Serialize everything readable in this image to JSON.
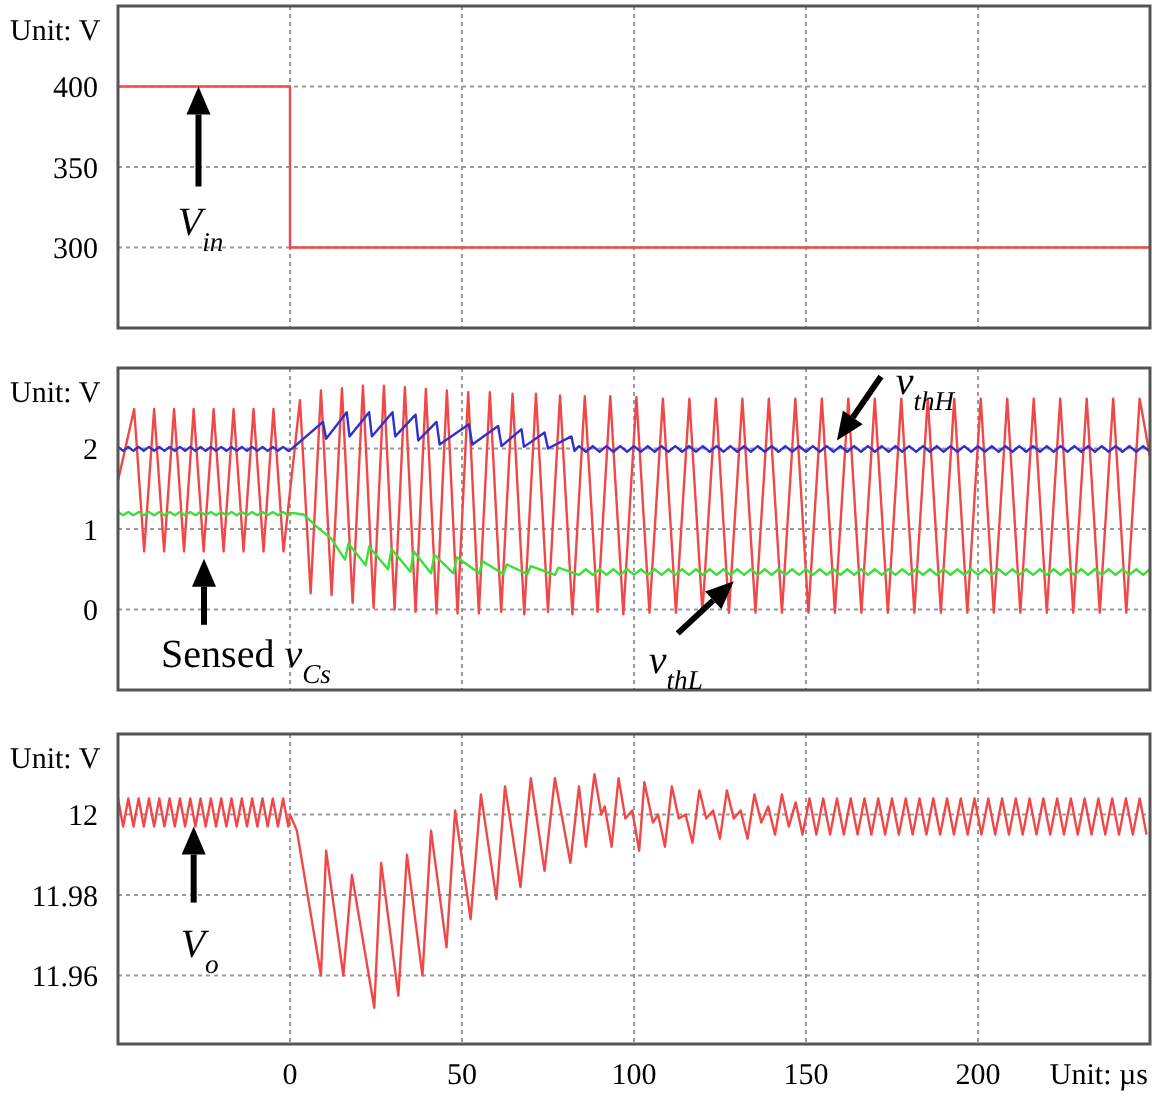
{
  "chart_data": [
    {
      "type": "step",
      "xlim": [
        -50,
        250
      ],
      "xticks": [
        0,
        50,
        100,
        150,
        200
      ],
      "ylim": [
        250,
        450
      ],
      "yticks": [
        300,
        350,
        400
      ],
      "grid": true,
      "tick_labels": "y",
      "series": [
        {
          "color": "#f04848",
          "x": [
            -50,
            0,
            250
          ],
          "values": [
            400,
            300,
            300
          ]
        }
      ],
      "annotations": [
        "Unit: V",
        {
          "text": "V$_{in}$",
          "x": -26.6,
          "y": 400
        }
      ]
    },
    {
      "type": "line",
      "xlim": [
        -50,
        250
      ],
      "xticks": [
        0,
        50,
        100,
        150,
        200
      ],
      "ylim": [
        -1,
        3
      ],
      "yticks": [
        0,
        1,
        2
      ],
      "grid": true,
      "tick_labels": "y",
      "series": [
        {
          "color": "#f04848",
          "x": [
            -50,
            -45.3,
            -42.4,
            -39.5,
            -36.6,
            -33.7,
            -30.8,
            -28.0,
            -25.1,
            -22.2,
            -19.3,
            -16.4,
            -13.5,
            -10.6,
            -7.7,
            -4.8,
            -1.9,
            2.9,
            6.0,
            9.0,
            12.1,
            15.1,
            18.2,
            21.2,
            24.3,
            27.3,
            30.4,
            33.4,
            36.5,
            39.5,
            42.6,
            45.6,
            48.7,
            51.8,
            54.9,
            58.1,
            61.4,
            64.7,
            68.1,
            71.5,
            75.0,
            78.5,
            82.1,
            85.7,
            89.4,
            93.1,
            96.9,
            100.7,
            104.5,
            108.4,
            112.2,
            116.1,
            119.9,
            123.8,
            127.6,
            131.5,
            135.3,
            139.2,
            143.0,
            146.9,
            150.7,
            154.6,
            158.4,
            162.3,
            166.1,
            170.0,
            173.8,
            177.7,
            181.5,
            185.4,
            189.2,
            193.1,
            196.9,
            200.8,
            204.6,
            208.5,
            212.3,
            216.2,
            220.0,
            223.9,
            227.7,
            231.6,
            235.4,
            239.3,
            243.1,
            247.0,
            250
          ],
          "values": [
            1.6,
            2.49,
            0.72,
            2.49,
            0.72,
            2.49,
            0.72,
            2.49,
            0.72,
            2.49,
            0.72,
            2.49,
            0.72,
            2.49,
            0.72,
            2.49,
            0.72,
            2.6,
            0.2,
            2.72,
            0.18,
            2.75,
            0.08,
            2.78,
            0.02,
            2.78,
            0.0,
            2.76,
            -0.03,
            2.74,
            -0.05,
            2.72,
            -0.05,
            2.7,
            -0.05,
            2.7,
            -0.03,
            2.68,
            -0.06,
            2.68,
            -0.03,
            2.66,
            -0.06,
            2.65,
            -0.03,
            2.65,
            -0.06,
            2.64,
            -0.04,
            2.62,
            -0.04,
            2.62,
            -0.04,
            2.62,
            -0.04,
            2.62,
            -0.04,
            2.62,
            -0.04,
            2.62,
            -0.04,
            2.62,
            -0.04,
            2.62,
            -0.04,
            2.62,
            -0.04,
            2.62,
            -0.04,
            2.62,
            -0.04,
            2.62,
            -0.04,
            2.62,
            -0.04,
            2.62,
            -0.04,
            2.62,
            -0.04,
            2.62,
            -0.04,
            2.62,
            -0.04,
            2.62,
            -0.04,
            2.62,
            1.9
          ]
        },
        {
          "color": "#3030d0",
          "x": [
            -50,
            -48.5,
            -47,
            -45.5,
            -44,
            -42.5,
            -41,
            -39.5,
            -38,
            -36.5,
            -35,
            -33.5,
            -32,
            -30.5,
            -29,
            -27.5,
            -26,
            -24.5,
            -23,
            -21.5,
            -20,
            -18.5,
            -17,
            -15.5,
            -14,
            -12.5,
            -11,
            -9.5,
            -8,
            -6.5,
            -5,
            -3.5,
            -2,
            -0.5,
            0.6,
            9.6,
            10.5,
            16.5,
            17.3,
            23,
            23.8,
            29.8,
            30.6,
            36.5,
            37.3,
            42.6,
            43.5,
            52,
            53,
            60.5,
            61.5,
            67.3,
            68,
            74,
            75,
            81.8,
            82.7,
            84,
            86,
            88,
            90,
            92,
            94,
            96,
            98,
            100,
            102,
            104,
            106,
            108,
            110,
            112,
            114,
            116,
            118,
            120,
            122,
            124,
            126,
            128,
            130,
            132,
            134,
            136,
            138,
            140,
            142,
            144,
            146,
            148,
            150,
            152,
            154,
            156,
            158,
            160,
            162,
            164,
            166,
            168,
            170,
            172,
            174,
            176,
            178,
            180,
            182,
            184,
            186,
            188,
            190,
            192,
            194,
            196,
            198,
            200,
            202,
            204,
            206,
            208,
            210,
            212,
            214,
            216,
            218,
            220,
            222,
            224,
            226,
            228,
            230,
            232,
            234,
            236,
            238,
            240,
            242,
            244,
            246,
            248,
            250
          ],
          "values": [
            2.02,
            1.97,
            2.02,
            1.97,
            2.02,
            1.97,
            2.02,
            1.97,
            2.02,
            1.97,
            2.02,
            1.97,
            2.02,
            1.97,
            2.02,
            1.97,
            2.02,
            1.97,
            2.02,
            1.97,
            2.02,
            1.97,
            2.02,
            1.97,
            2.02,
            1.97,
            2.02,
            1.97,
            2.02,
            1.97,
            2.02,
            1.97,
            2.02,
            1.97,
            2.0,
            2.33,
            2.12,
            2.45,
            2.15,
            2.45,
            2.15,
            2.45,
            2.15,
            2.42,
            2.1,
            2.33,
            2.05,
            2.3,
            2.05,
            2.28,
            2.03,
            2.24,
            2.02,
            2.2,
            2.0,
            2.15,
            1.97,
            2.03,
            1.96,
            2.03,
            1.96,
            2.03,
            1.96,
            2.03,
            1.96,
            2.03,
            1.96,
            2.03,
            1.96,
            2.03,
            1.96,
            2.03,
            1.96,
            2.03,
            1.96,
            2.03,
            1.96,
            2.03,
            1.96,
            2.03,
            1.96,
            2.03,
            1.96,
            2.03,
            1.96,
            2.03,
            1.96,
            2.03,
            1.96,
            2.03,
            1.96,
            2.03,
            1.96,
            2.03,
            1.96,
            2.03,
            1.96,
            2.03,
            1.96,
            2.03,
            1.96,
            2.03,
            1.96,
            2.03,
            1.96,
            2.03,
            1.96,
            2.03,
            1.96,
            2.03,
            1.96,
            2.03,
            1.96,
            2.03,
            1.96,
            2.03,
            1.96,
            2.03,
            1.96,
            2.03,
            1.96,
            2.03,
            1.96,
            2.03,
            1.96,
            2.03,
            1.96,
            2.03,
            1.96,
            2.03,
            1.96,
            2.03,
            1.96,
            2.03,
            1.96,
            2.03,
            1.96,
            2.03,
            1.96,
            2.03,
            1.96
          ]
        },
        {
          "color": "#38e038",
          "x": [
            -50,
            -48.5,
            -47,
            -45.5,
            -44,
            -42.5,
            -41,
            -39.5,
            -38,
            -36.5,
            -35,
            -33.5,
            -32,
            -30.5,
            -29,
            -27.5,
            -26,
            -24.5,
            -23,
            -21.5,
            -20,
            -18.5,
            -17,
            -15.5,
            -14,
            -12.5,
            -11,
            -9.5,
            -8,
            -6.5,
            -5,
            -3.5,
            -2,
            -0.5,
            0.6,
            4,
            8,
            12,
            16,
            17,
            22,
            23,
            28.5,
            29.5,
            35,
            36,
            41,
            42,
            47.5,
            48.5,
            55,
            56,
            62,
            63,
            69,
            70,
            77,
            78,
            84,
            86,
            88,
            90,
            92,
            94,
            96,
            98,
            100,
            102,
            104,
            106,
            108,
            110,
            112,
            114,
            116,
            118,
            120,
            122,
            124,
            126,
            128,
            130,
            132,
            134,
            136,
            138,
            140,
            142,
            144,
            146,
            148,
            150,
            152,
            154,
            156,
            158,
            160,
            162,
            164,
            166,
            168,
            170,
            172,
            174,
            176,
            178,
            180,
            182,
            184,
            186,
            188,
            190,
            192,
            194,
            196,
            198,
            200,
            202,
            204,
            206,
            208,
            210,
            212,
            214,
            216,
            218,
            220,
            222,
            224,
            226,
            228,
            230,
            232,
            234,
            236,
            238,
            240,
            242,
            244,
            246,
            248,
            250
          ],
          "values": [
            1.21,
            1.17,
            1.21,
            1.17,
            1.21,
            1.17,
            1.21,
            1.17,
            1.21,
            1.17,
            1.21,
            1.17,
            1.21,
            1.17,
            1.21,
            1.17,
            1.21,
            1.17,
            1.21,
            1.17,
            1.21,
            1.17,
            1.21,
            1.17,
            1.21,
            1.17,
            1.21,
            1.17,
            1.21,
            1.17,
            1.21,
            1.17,
            1.21,
            1.17,
            1.2,
            1.18,
            1.02,
            0.88,
            0.62,
            0.82,
            0.55,
            0.78,
            0.5,
            0.75,
            0.47,
            0.72,
            0.45,
            0.68,
            0.45,
            0.65,
            0.45,
            0.6,
            0.44,
            0.56,
            0.44,
            0.54,
            0.43,
            0.52,
            0.43,
            0.5,
            0.43,
            0.5,
            0.43,
            0.5,
            0.43,
            0.5,
            0.43,
            0.5,
            0.43,
            0.5,
            0.43,
            0.5,
            0.43,
            0.5,
            0.43,
            0.5,
            0.43,
            0.5,
            0.43,
            0.5,
            0.43,
            0.5,
            0.43,
            0.5,
            0.43,
            0.5,
            0.43,
            0.5,
            0.43,
            0.5,
            0.43,
            0.5,
            0.43,
            0.5,
            0.43,
            0.5,
            0.43,
            0.5,
            0.43,
            0.5,
            0.43,
            0.5,
            0.43,
            0.5,
            0.43,
            0.5,
            0.43,
            0.5,
            0.43,
            0.5,
            0.43,
            0.5,
            0.43,
            0.5,
            0.43,
            0.5,
            0.43,
            0.5,
            0.43,
            0.5,
            0.43,
            0.5,
            0.43,
            0.5,
            0.43,
            0.5,
            0.43,
            0.5,
            0.43,
            0.5,
            0.43,
            0.5,
            0.43,
            0.5,
            0.43,
            0.5,
            0.43,
            0.5,
            0.43,
            0.5,
            0.43,
            0.5
          ]
        }
      ],
      "annotations": [
        "Unit: V",
        {
          "text": "Sensed v$_{Cs}$",
          "x": -25,
          "y": 0.63
        },
        {
          "text": "v$_{thH}$",
          "x": 159,
          "y": 2.1
        },
        {
          "text": "v$_{thL}$",
          "x": 129,
          "y": 0.35
        }
      ]
    },
    {
      "type": "line",
      "xlim": [
        -50,
        250
      ],
      "xticks": [
        0,
        50,
        100,
        150,
        200
      ],
      "ylim": [
        11.943,
        12.02
      ],
      "yticks": [
        11.96,
        11.98,
        12
      ],
      "grid": true,
      "series": [
        {
          "color": "#f04848",
          "x": [
            -50,
            -48.5,
            -47,
            -45.5,
            -44,
            -42.5,
            -41,
            -39.5,
            -38,
            -36.5,
            -35,
            -33.5,
            -32,
            -30.5,
            -29,
            -27.5,
            -26,
            -24.5,
            -23,
            -21.5,
            -20,
            -18.5,
            -17,
            -15.5,
            -14,
            -12.5,
            -11,
            -9.5,
            -8,
            -6.5,
            -5,
            -3.5,
            -2,
            -0.5,
            0,
            2,
            9,
            10.5,
            15.5,
            18,
            24.5,
            26.5,
            31.5,
            34,
            38.5,
            41,
            45.5,
            48,
            52.5,
            55.5,
            60,
            62.5,
            67,
            70,
            74,
            77,
            81.5,
            84,
            86,
            88.5,
            90.5,
            91.5,
            93.5,
            95.5,
            97.5,
            99.5,
            101.5,
            103,
            105.5,
            107,
            109,
            111,
            113,
            115,
            117,
            119,
            121,
            123,
            125,
            127,
            129,
            131,
            133,
            135,
            137,
            139,
            141,
            143,
            145,
            147,
            149,
            151,
            153,
            155,
            157,
            159,
            161,
            163,
            165,
            167,
            169,
            171,
            173,
            175,
            177,
            179,
            181,
            183,
            185,
            187,
            189,
            191,
            193,
            195,
            197,
            199,
            201,
            203,
            205,
            207,
            209,
            211,
            213,
            215,
            217,
            219,
            221,
            223,
            225,
            227,
            229,
            231,
            233,
            235,
            237,
            239,
            241,
            243,
            245,
            247,
            249
          ],
          "values": [
            12.004,
            11.997,
            12.004,
            11.997,
            12.004,
            11.997,
            12.004,
            11.997,
            12.004,
            11.997,
            12.004,
            11.997,
            12.004,
            11.997,
            12.004,
            11.997,
            12.004,
            11.997,
            12.004,
            11.997,
            12.004,
            11.997,
            12.004,
            11.997,
            12.004,
            11.997,
            12.004,
            11.997,
            12.004,
            11.997,
            12.004,
            11.997,
            12.004,
            11.997,
            12.0,
            11.996,
            11.96,
            11.991,
            11.96,
            11.985,
            11.952,
            11.988,
            11.955,
            11.99,
            11.96,
            11.996,
            11.967,
            12.001,
            11.974,
            12.005,
            11.979,
            12.007,
            11.982,
            12.009,
            11.986,
            12.009,
            11.988,
            12.007,
            11.992,
            12.01,
            12.0,
            12.002,
            11.992,
            12.009,
            11.999,
            12.001,
            11.991,
            12.008,
            11.998,
            12.0,
            11.992,
            12.007,
            11.999,
            12.0,
            11.993,
            12.006,
            11.999,
            12.001,
            11.994,
            12.006,
            11.999,
            12.001,
            11.994,
            12.005,
            11.998,
            12.002,
            11.995,
            12.005,
            11.997,
            12.003,
            11.995,
            12.004,
            11.995,
            12.004,
            11.995,
            12.004,
            11.995,
            12.004,
            11.995,
            12.004,
            11.995,
            12.004,
            11.995,
            12.004,
            11.995,
            12.004,
            11.995,
            12.004,
            11.995,
            12.004,
            11.995,
            12.004,
            11.995,
            12.004,
            11.995,
            12.004,
            11.995,
            12.004,
            11.995,
            12.004,
            11.995,
            12.004,
            11.995,
            12.004,
            11.995,
            12.004,
            11.995,
            12.004,
            11.995,
            12.004,
            11.995,
            12.004,
            11.995,
            12.004,
            11.995,
            12.004,
            11.995,
            12.004,
            11.995,
            12.004,
            11.995
          ]
        }
      ],
      "annotations": [
        "Unit: V",
        {
          "text": "V$_{o}$",
          "x": -28,
          "y": 11.997
        },
        "Unit: µs"
      ]
    }
  ]
}
